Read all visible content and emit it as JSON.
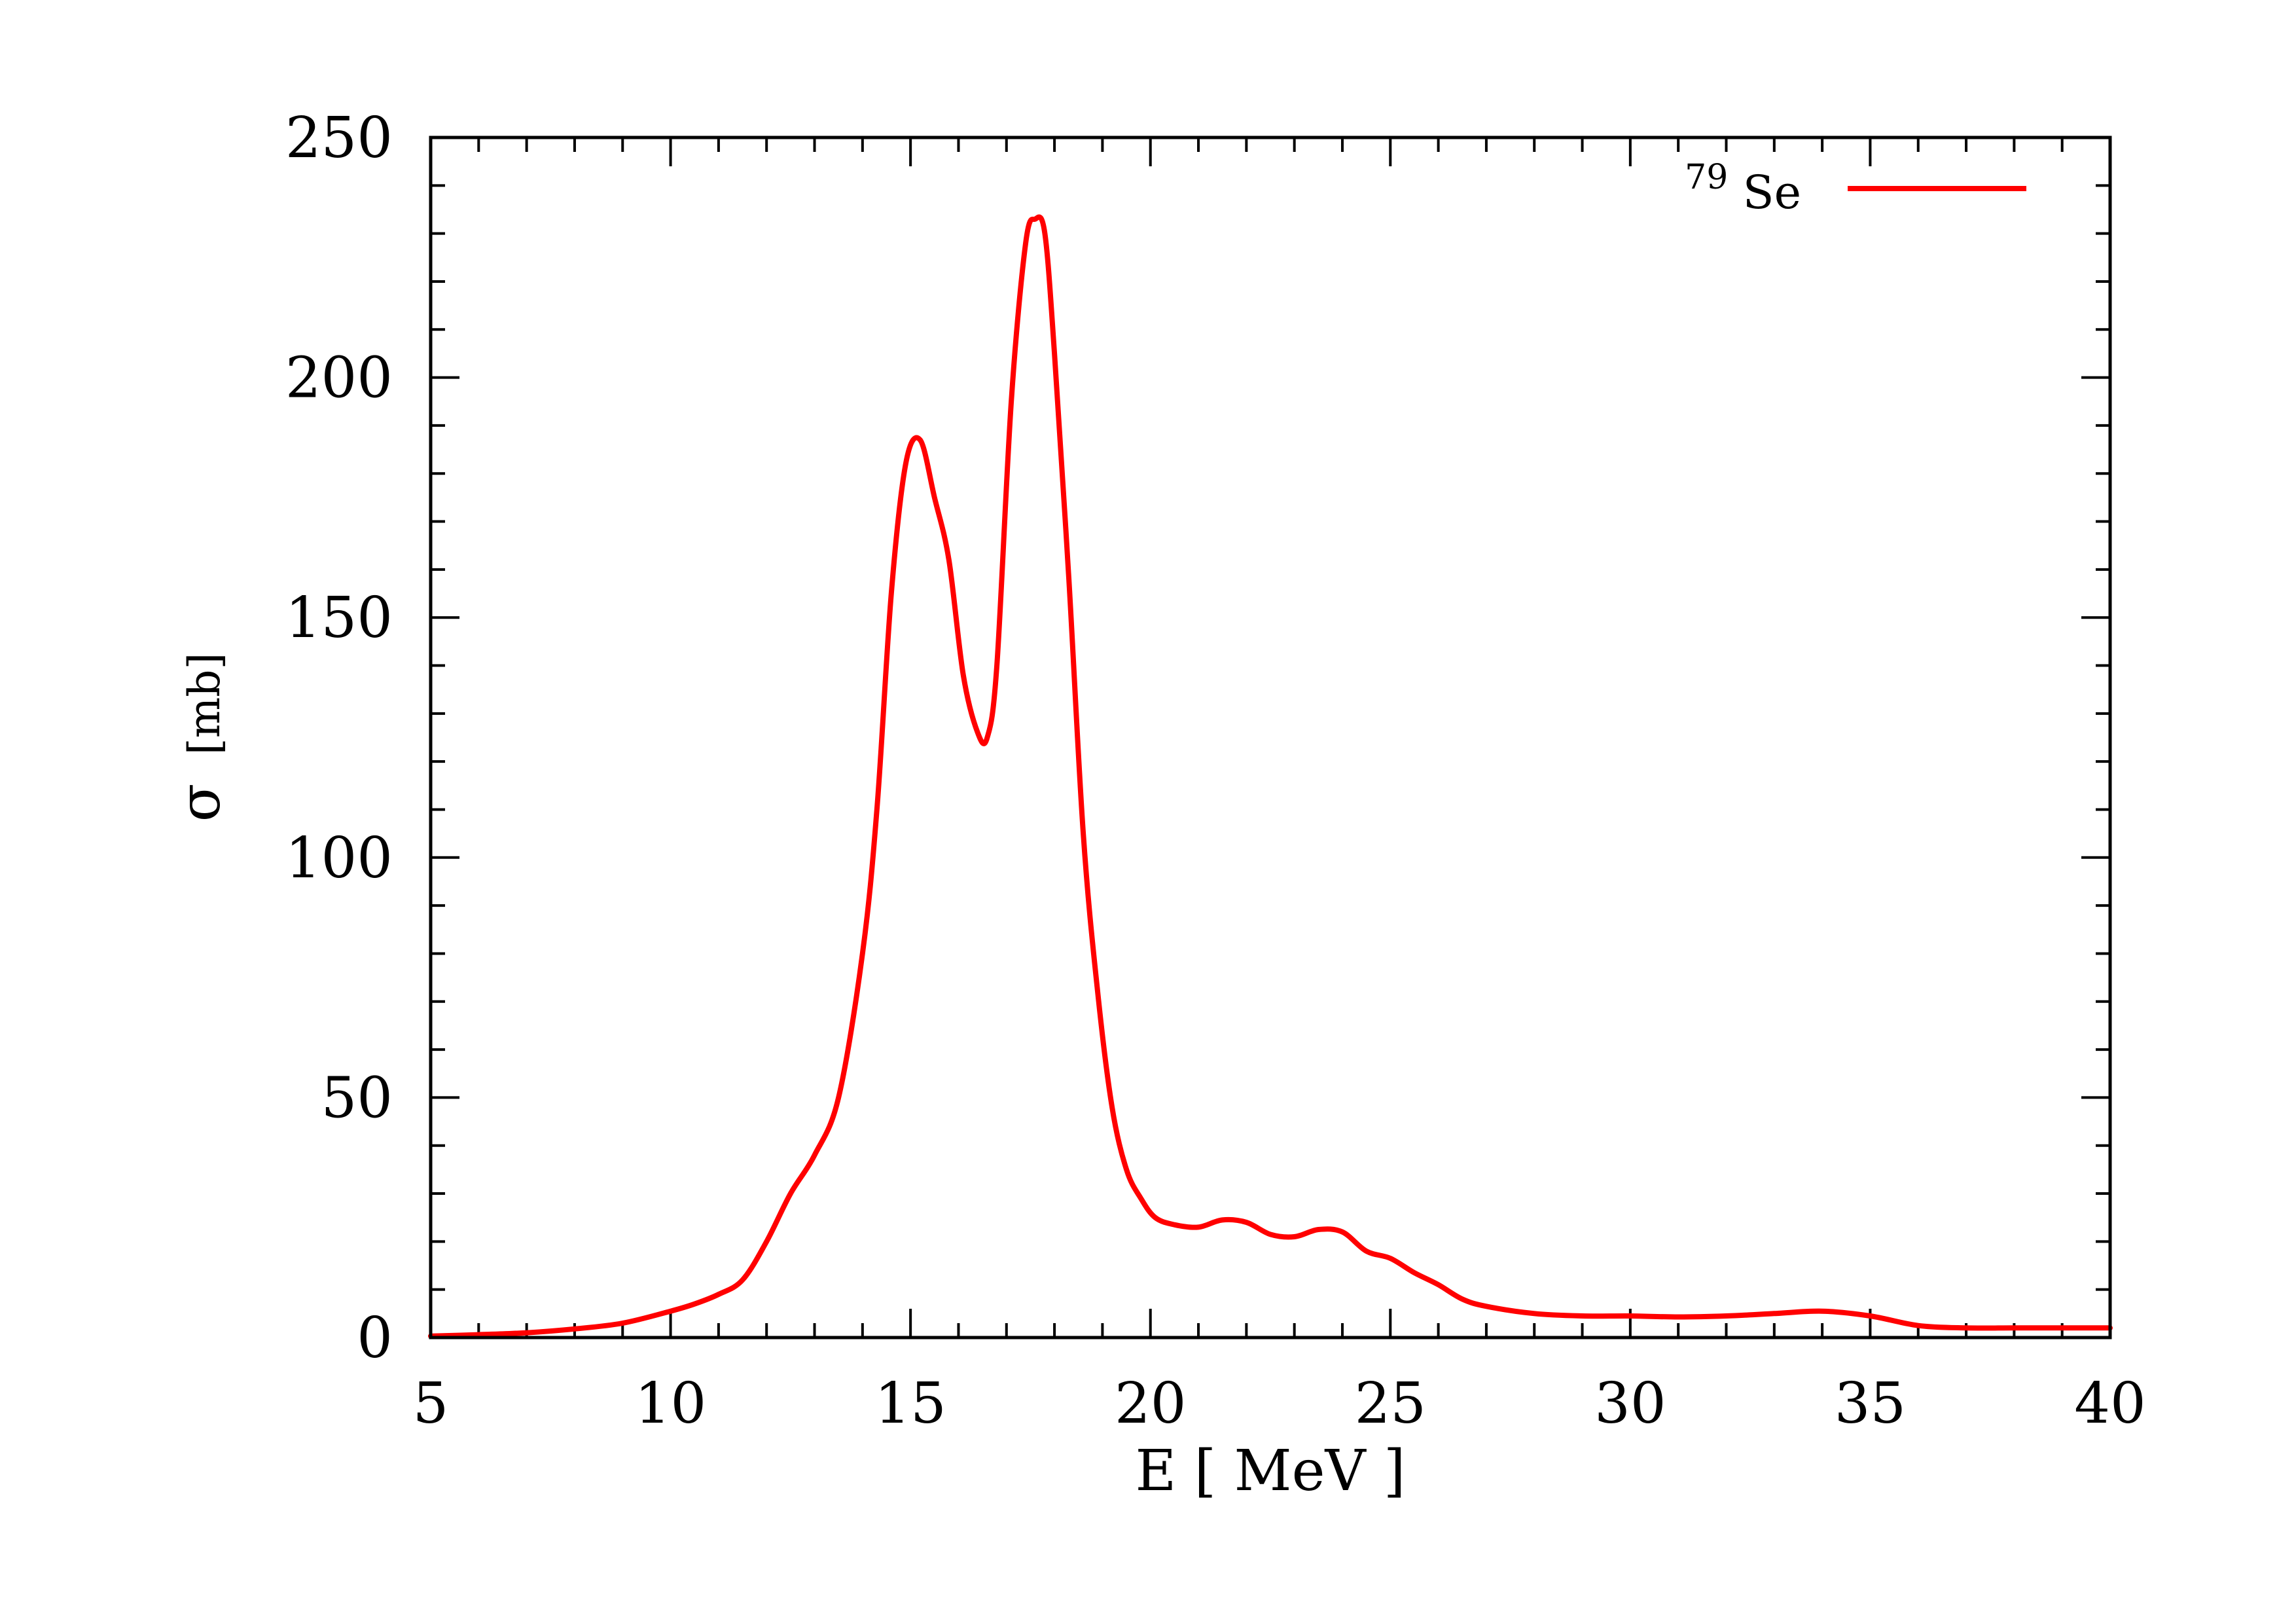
{
  "chart_data": {
    "type": "line",
    "xlabel": "E [ MeV ]",
    "ylabel_symbol": "σ",
    "ylabel_unit": "[mb]",
    "xlim": [
      5,
      40
    ],
    "ylim": [
      0,
      250
    ],
    "x_ticks": [
      5,
      10,
      15,
      20,
      25,
      30,
      35,
      40
    ],
    "y_ticks": [
      0,
      50,
      100,
      150,
      200,
      250
    ],
    "x_minor_step": 1,
    "y_minor_step": 10,
    "grid": false,
    "legend_position": "top-right",
    "series": [
      {
        "name": "Se",
        "name_superscript": "79",
        "color": "#ff0000",
        "x": [
          5,
          6,
          7,
          8,
          9,
          10,
          10.5,
          11,
          11.5,
          12,
          12.5,
          13,
          13.5,
          14,
          14.3,
          14.6,
          14.9,
          15.2,
          15.5,
          15.8,
          16.1,
          16.4,
          16.6,
          16.8,
          17.1,
          17.4,
          17.6,
          17.8,
          18.0,
          18.3,
          18.6,
          18.9,
          19.2,
          19.5,
          19.8,
          20.1,
          20.5,
          21.0,
          21.5,
          22.0,
          22.5,
          23.0,
          23.5,
          24.0,
          24.5,
          25.0,
          25.5,
          26.0,
          26.5,
          27.0,
          28,
          29,
          30,
          31,
          32,
          33,
          34,
          35,
          36,
          37,
          38,
          39,
          40
        ],
        "y": [
          0.3,
          0.6,
          1.0,
          1.8,
          3.0,
          5.5,
          7.0,
          9.0,
          12.0,
          20.0,
          30.0,
          38.0,
          50.0,
          80.0,
          110.0,
          155.0,
          182.0,
          187.0,
          175.0,
          162.0,
          138.0,
          126.0,
          125.0,
          140.0,
          195.0,
          228.0,
          233.0,
          230.0,
          205.0,
          158.0,
          105.0,
          72.0,
          48.0,
          35.0,
          29.0,
          25.0,
          23.5,
          23.0,
          24.5,
          24.0,
          21.5,
          21.0,
          22.5,
          22.0,
          18.0,
          16.5,
          13.5,
          11.0,
          8.0,
          6.5,
          5.0,
          4.5,
          4.5,
          4.3,
          4.5,
          5.0,
          5.5,
          4.5,
          2.5,
          2.0,
          2.0,
          2.0,
          2.0
        ]
      }
    ]
  }
}
